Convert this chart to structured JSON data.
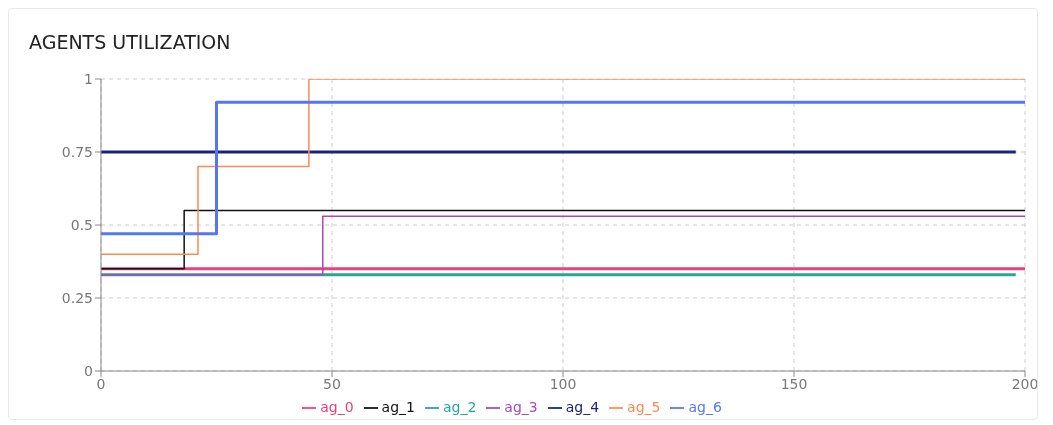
{
  "chart_data": {
    "type": "step",
    "title": "AGENTS UTILIZATION",
    "xlim": [
      0,
      200
    ],
    "xticks": [
      0,
      50,
      100,
      150,
      200
    ],
    "ylim": [
      0,
      1
    ],
    "yticks": [
      0,
      0.25,
      0.5,
      0.75,
      1
    ],
    "grid": true,
    "legend": "bottom",
    "series": [
      {
        "name": "ag_0",
        "color": "#ec407a",
        "x": [
          0,
          200
        ],
        "values": [
          0.35,
          0.35
        ]
      },
      {
        "name": "ag_1",
        "color": "#111111",
        "x": [
          0,
          18,
          200
        ],
        "values": [
          0.35,
          0.55,
          0.55
        ]
      },
      {
        "name": "ag_2",
        "color": "#26a69a",
        "x": [
          0,
          198
        ],
        "values": [
          0.33,
          0.33
        ]
      },
      {
        "name": "ag_3",
        "color": "#ab47bc",
        "x": [
          0,
          48,
          200
        ],
        "values": [
          0.33,
          0.53,
          0.53
        ]
      },
      {
        "name": "ag_4",
        "color": "#1a237e",
        "x": [
          0,
          198
        ],
        "values": [
          0.75,
          0.75
        ]
      },
      {
        "name": "ag_5",
        "color": "#ff8a50",
        "x": [
          0,
          21,
          45,
          200
        ],
        "values": [
          0.4,
          0.7,
          1,
          1
        ]
      },
      {
        "name": "ag_6",
        "color": "#5677ee",
        "x": [
          0,
          25,
          200
        ],
        "values": [
          0.47,
          0.92,
          0.92
        ]
      }
    ]
  }
}
